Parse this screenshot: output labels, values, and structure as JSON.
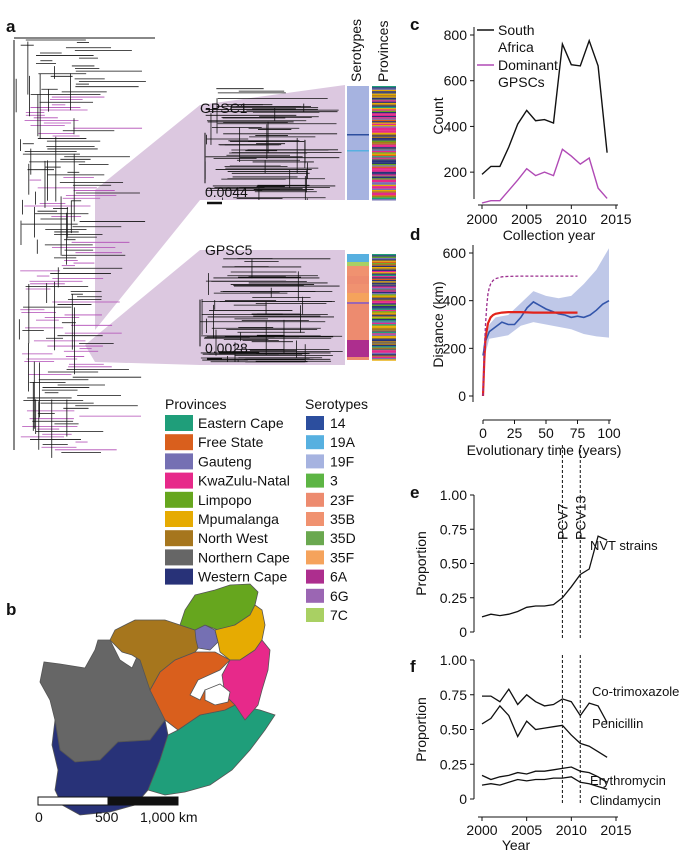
{
  "panel_labels": [
    "a",
    "b",
    "c",
    "d",
    "e",
    "f"
  ],
  "panel_a": {
    "column_headers": [
      "Serotypes",
      "Provinces"
    ],
    "clusters": [
      {
        "name": "GPSC1",
        "scale": "0.0044"
      },
      {
        "name": "GPSC5",
        "scale": "0.0028"
      }
    ]
  },
  "legends": {
    "provinces_title": "Provinces",
    "provinces": [
      {
        "label": "Eastern Cape",
        "color": "#1f9e7a"
      },
      {
        "label": "Free State",
        "color": "#d95f1d"
      },
      {
        "label": "Gauteng",
        "color": "#7570b3"
      },
      {
        "label": "KwaZulu-Natal",
        "color": "#e7298a"
      },
      {
        "label": "Limpopo",
        "color": "#66a61e"
      },
      {
        "label": "Mpumalanga",
        "color": "#e6ab02"
      },
      {
        "label": "North West",
        "color": "#a6761d"
      },
      {
        "label": "Northern Cape",
        "color": "#666666"
      },
      {
        "label": "Western Cape",
        "color": "#283278"
      }
    ],
    "serotypes_title": "Serotypes",
    "serotypes": [
      {
        "label": "14",
        "color": "#2c4e9e"
      },
      {
        "label": "19A",
        "color": "#57b0e0"
      },
      {
        "label": "19F",
        "color": "#a6b3e0"
      },
      {
        "label": "3",
        "color": "#5db544"
      },
      {
        "label": "23F",
        "color": "#ed8b6f"
      },
      {
        "label": "35B",
        "color": "#f09270"
      },
      {
        "label": "35D",
        "color": "#6aa84f"
      },
      {
        "label": "35F",
        "color": "#f5a35c"
      },
      {
        "label": "6A",
        "color": "#ad2e8e"
      },
      {
        "label": "6G",
        "color": "#9b66b3"
      },
      {
        "label": "7C",
        "color": "#a9d063"
      }
    ]
  },
  "panel_b": {
    "scalebar_labels": [
      "0",
      "500",
      "1,000 km"
    ]
  },
  "chart_data": [
    {
      "id": "c",
      "type": "line",
      "title": "",
      "xlabel": "Collection year",
      "ylabel": "Count",
      "xlim": [
        2000,
        2015
      ],
      "ylim": [
        100,
        800
      ],
      "xticks": [
        2000,
        2005,
        2010,
        2015
      ],
      "yticks": [
        200,
        400,
        600,
        800
      ],
      "x": [
        2000,
        2001,
        2002,
        2003,
        2004,
        2005,
        2006,
        2007,
        2008,
        2009,
        2010,
        2011,
        2012,
        2013,
        2014
      ],
      "series": [
        {
          "name": "South Africa",
          "color": "#111111",
          "values": [
            190,
            225,
            225,
            310,
            410,
            470,
            425,
            430,
            415,
            760,
            670,
            665,
            775,
            665,
            285
          ]
        },
        {
          "name": "Dominant GPSCs",
          "color": "#b04ab5",
          "values": [
            65,
            75,
            75,
            120,
            165,
            215,
            185,
            200,
            185,
            300,
            270,
            235,
            262,
            130,
            85
          ]
        }
      ],
      "legend": [
        "South Africa",
        "Dominant GPSCs"
      ]
    },
    {
      "id": "d",
      "type": "line",
      "title": "",
      "xlabel": "Evolutionary time (years)",
      "ylabel": "Distance (km)",
      "xlim": [
        0,
        100
      ],
      "ylim": [
        0,
        650
      ],
      "xticks": [
        0,
        25,
        50,
        75,
        100
      ],
      "yticks": [
        0,
        200,
        400,
        600
      ],
      "series": [
        {
          "name": "Observed",
          "color": "#3355aa",
          "x": [
            0,
            2,
            5,
            10,
            15,
            20,
            25,
            30,
            35,
            40,
            45,
            50,
            55,
            60,
            65,
            70,
            75,
            80,
            85,
            90,
            95,
            100
          ],
          "values": [
            170,
            230,
            270,
            290,
            310,
            300,
            300,
            330,
            370,
            395,
            380,
            365,
            355,
            345,
            340,
            330,
            335,
            330,
            340,
            360,
            385,
            400
          ]
        },
        {
          "name": "Observed 95% CI lower",
          "color": "#a9b6e0",
          "x": [
            0,
            5,
            10,
            20,
            30,
            40,
            50,
            60,
            70,
            80,
            90,
            100
          ],
          "values": [
            140,
            240,
            245,
            255,
            295,
            310,
            300,
            290,
            280,
            260,
            250,
            245
          ]
        },
        {
          "name": "Observed 95% CI upper",
          "color": "#a9b6e0",
          "x": [
            0,
            5,
            10,
            20,
            30,
            40,
            50,
            60,
            70,
            80,
            90,
            100
          ],
          "values": [
            210,
            300,
            330,
            340,
            390,
            440,
            420,
            410,
            420,
            470,
            530,
            620
          ]
        },
        {
          "name": "Fitted",
          "color": "#e2231a",
          "x": [
            0,
            1,
            2,
            4,
            6,
            8,
            10,
            15,
            20,
            30,
            40,
            50,
            60,
            70,
            75
          ],
          "values": [
            0,
            150,
            245,
            305,
            330,
            340,
            345,
            350,
            352,
            352,
            350,
            350,
            350,
            350,
            350
          ]
        },
        {
          "name": "Simulated (dashed)",
          "color": "#9b2d8e",
          "x": [
            0,
            1,
            2,
            3,
            4,
            5,
            6,
            8,
            10,
            15,
            20,
            30,
            50,
            75
          ],
          "values": [
            0,
            180,
            300,
            380,
            430,
            455,
            470,
            485,
            492,
            500,
            502,
            503,
            503,
            503
          ]
        }
      ]
    },
    {
      "id": "e",
      "type": "line",
      "title": "",
      "xlabel": "",
      "ylabel": "Proportion",
      "xlim": [
        2000,
        2015
      ],
      "ylim": [
        0,
        1
      ],
      "yticks": [
        0,
        0.25,
        0.5,
        0.75,
        1.0
      ],
      "ytick_labels": [
        "0",
        "0.25",
        "0.50",
        "0.75",
        "1.00"
      ],
      "x": [
        2000,
        2001,
        2002,
        2003,
        2004,
        2005,
        2006,
        2007,
        2008,
        2009,
        2010,
        2011,
        2012,
        2013,
        2014
      ],
      "series": [
        {
          "name": "NVT strains",
          "color": "#111111",
          "values": [
            0.11,
            0.13,
            0.12,
            0.13,
            0.15,
            0.18,
            0.19,
            0.19,
            0.2,
            0.25,
            0.33,
            0.42,
            0.46,
            0.7,
            0.67
          ]
        }
      ],
      "vlines": [
        {
          "x": 2009,
          "label": "PCV7"
        },
        {
          "x": 2011,
          "label": "PCV13"
        }
      ]
    },
    {
      "id": "f",
      "type": "line",
      "title": "",
      "xlabel": "Year",
      "ylabel": "Proportion",
      "xlim": [
        2000,
        2015
      ],
      "ylim": [
        0,
        1
      ],
      "xticks": [
        2000,
        2005,
        2010,
        2015
      ],
      "yticks": [
        0,
        0.25,
        0.5,
        0.75,
        1.0
      ],
      "ytick_labels": [
        "0",
        "0.25",
        "0.50",
        "0.75",
        "1.00"
      ],
      "x": [
        2000,
        2001,
        2002,
        2003,
        2004,
        2005,
        2006,
        2007,
        2008,
        2009,
        2010,
        2011,
        2012,
        2013,
        2014
      ],
      "series": [
        {
          "name": "Co-trimoxazole",
          "color": "#111111",
          "values": [
            0.74,
            0.74,
            0.7,
            0.79,
            0.68,
            0.75,
            0.7,
            0.67,
            0.68,
            0.72,
            0.7,
            0.6,
            0.69,
            0.67,
            0.55
          ]
        },
        {
          "name": "Penicillin",
          "color": "#111111",
          "values": [
            0.54,
            0.58,
            0.67,
            0.6,
            0.45,
            0.56,
            0.5,
            0.51,
            0.52,
            0.53,
            0.46,
            0.4,
            0.38,
            0.34,
            0.3
          ]
        },
        {
          "name": "Erythromycin",
          "color": "#111111",
          "values": [
            0.17,
            0.14,
            0.16,
            0.17,
            0.19,
            0.18,
            0.2,
            0.2,
            0.21,
            0.22,
            0.23,
            0.2,
            0.19,
            0.16,
            0.12
          ]
        },
        {
          "name": "Clindamycin",
          "color": "#111111",
          "values": [
            0.1,
            0.11,
            0.1,
            0.12,
            0.14,
            0.13,
            0.14,
            0.14,
            0.15,
            0.15,
            0.16,
            0.12,
            0.11,
            0.09,
            0.07
          ]
        }
      ],
      "vlines": [
        {
          "x": 2009,
          "label": ""
        },
        {
          "x": 2011,
          "label": ""
        }
      ]
    }
  ],
  "dominant_color": "#b04ab5",
  "tree_shade_color": "#dcc8e0"
}
